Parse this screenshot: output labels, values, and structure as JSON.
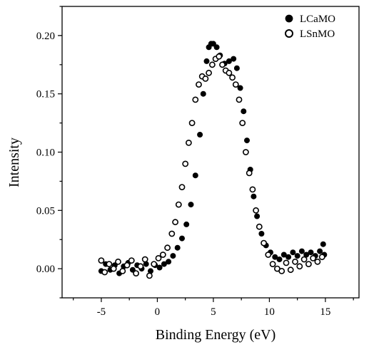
{
  "chart_data": {
    "type": "scatter",
    "title": "",
    "xlabel": "Binding Energy (eV)",
    "ylabel": "Intensity",
    "xlim": [
      -8.5,
      18
    ],
    "ylim": [
      -0.025,
      0.225
    ],
    "xticks": [
      -5,
      0,
      5,
      10,
      15
    ],
    "xtick_labels": [
      "-5",
      "0",
      "5",
      "10",
      "15"
    ],
    "yticks": [
      0.0,
      0.05,
      0.1,
      0.15,
      0.2
    ],
    "ytick_labels": [
      "0.00",
      "0.05",
      "0.10",
      "0.15",
      "0.20"
    ],
    "grid": false,
    "legend_position": "top-right",
    "series": [
      {
        "name": "LCaMO",
        "marker": "filled-circle",
        "color": "#000000",
        "points": [
          [
            -5.0,
            -0.002
          ],
          [
            -4.6,
            0.004
          ],
          [
            -4.2,
            -0.001
          ],
          [
            -3.8,
            0.003
          ],
          [
            -3.4,
            -0.004
          ],
          [
            -3.0,
            0.002
          ],
          [
            -2.6,
            0.005
          ],
          [
            -2.2,
            -0.001
          ],
          [
            -1.8,
            0.003
          ],
          [
            -1.4,
            0.0
          ],
          [
            -1.0,
            0.004
          ],
          [
            -0.6,
            -0.002
          ],
          [
            -0.2,
            0.003
          ],
          [
            0.2,
            0.001
          ],
          [
            0.6,
            0.004
          ],
          [
            1.0,
            0.006
          ],
          [
            1.4,
            0.011
          ],
          [
            1.8,
            0.018
          ],
          [
            2.2,
            0.026
          ],
          [
            2.6,
            0.038
          ],
          [
            3.0,
            0.055
          ],
          [
            3.4,
            0.08
          ],
          [
            3.8,
            0.115
          ],
          [
            4.1,
            0.15
          ],
          [
            4.4,
            0.178
          ],
          [
            4.6,
            0.19
          ],
          [
            4.8,
            0.193
          ],
          [
            5.0,
            0.193
          ],
          [
            5.3,
            0.19
          ],
          [
            5.6,
            0.183
          ],
          [
            6.0,
            0.176
          ],
          [
            6.4,
            0.178
          ],
          [
            6.8,
            0.18
          ],
          [
            7.1,
            0.172
          ],
          [
            7.4,
            0.155
          ],
          [
            7.7,
            0.135
          ],
          [
            8.0,
            0.11
          ],
          [
            8.3,
            0.085
          ],
          [
            8.6,
            0.062
          ],
          [
            8.9,
            0.045
          ],
          [
            9.3,
            0.03
          ],
          [
            9.7,
            0.02
          ],
          [
            10.1,
            0.014
          ],
          [
            10.5,
            0.01
          ],
          [
            10.9,
            0.008
          ],
          [
            11.3,
            0.012
          ],
          [
            11.7,
            0.01
          ],
          [
            12.1,
            0.014
          ],
          [
            12.5,
            0.011
          ],
          [
            12.9,
            0.015
          ],
          [
            13.3,
            0.012
          ],
          [
            13.7,
            0.014
          ],
          [
            14.1,
            0.011
          ],
          [
            14.5,
            0.015
          ],
          [
            14.8,
            0.021
          ],
          [
            14.9,
            0.012
          ]
        ]
      },
      {
        "name": "LSnMO",
        "marker": "open-circle",
        "color": "#000000",
        "points": [
          [
            -5.0,
            0.007
          ],
          [
            -4.7,
            -0.003
          ],
          [
            -4.3,
            0.004
          ],
          [
            -3.9,
            0.0
          ],
          [
            -3.5,
            0.006
          ],
          [
            -3.1,
            -0.002
          ],
          [
            -2.7,
            0.003
          ],
          [
            -2.3,
            0.007
          ],
          [
            -1.9,
            -0.004
          ],
          [
            -1.5,
            0.002
          ],
          [
            -1.1,
            0.008
          ],
          [
            -0.7,
            -0.006
          ],
          [
            -0.3,
            0.004
          ],
          [
            0.1,
            0.009
          ],
          [
            0.5,
            0.012
          ],
          [
            0.9,
            0.018
          ],
          [
            1.3,
            0.03
          ],
          [
            1.6,
            0.04
          ],
          [
            1.9,
            0.055
          ],
          [
            2.2,
            0.07
          ],
          [
            2.5,
            0.09
          ],
          [
            2.8,
            0.108
          ],
          [
            3.1,
            0.125
          ],
          [
            3.4,
            0.145
          ],
          [
            3.7,
            0.158
          ],
          [
            4.0,
            0.165
          ],
          [
            4.3,
            0.163
          ],
          [
            4.6,
            0.168
          ],
          [
            4.9,
            0.175
          ],
          [
            5.2,
            0.18
          ],
          [
            5.5,
            0.182
          ],
          [
            5.8,
            0.175
          ],
          [
            6.1,
            0.17
          ],
          [
            6.4,
            0.168
          ],
          [
            6.7,
            0.164
          ],
          [
            7.0,
            0.158
          ],
          [
            7.3,
            0.145
          ],
          [
            7.6,
            0.125
          ],
          [
            7.9,
            0.1
          ],
          [
            8.2,
            0.082
          ],
          [
            8.5,
            0.068
          ],
          [
            8.8,
            0.05
          ],
          [
            9.1,
            0.036
          ],
          [
            9.5,
            0.022
          ],
          [
            9.9,
            0.012
          ],
          [
            10.3,
            0.004
          ],
          [
            10.7,
            0.0
          ],
          [
            11.1,
            -0.002
          ],
          [
            11.5,
            0.005
          ],
          [
            11.9,
            -0.001
          ],
          [
            12.3,
            0.006
          ],
          [
            12.7,
            0.002
          ],
          [
            13.1,
            0.008
          ],
          [
            13.5,
            0.004
          ],
          [
            13.9,
            0.009
          ],
          [
            14.3,
            0.006
          ],
          [
            14.7,
            0.01
          ]
        ]
      }
    ]
  }
}
